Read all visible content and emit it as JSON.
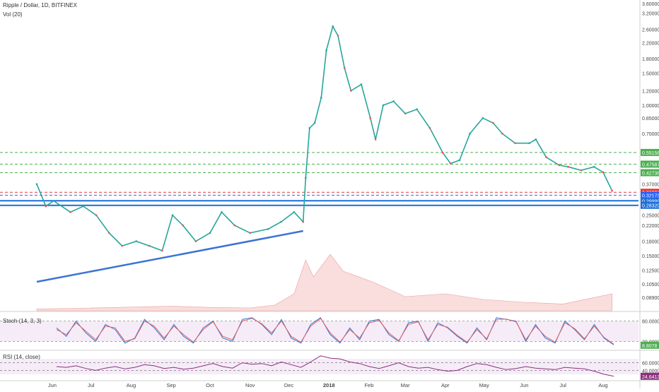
{
  "chart_data": [
    {
      "type": "candlestick",
      "title": "Ripple / Dollar, 1D, BITFINEX",
      "indicator_label": "Vol (20)",
      "y_scale": "log",
      "ylim": [
        0.075,
        3.7
      ],
      "y_ticks": [
        "3.60000",
        "3.20000",
        "2.60000",
        "2.20000",
        "1.80000",
        "1.50000",
        "1.20000",
        "1.00000",
        "0.85000",
        "0.70000",
        "0.37000",
        "0.30000",
        "0.25000",
        "0.22000",
        "0.18000",
        "0.15000",
        "0.12500",
        "0.10500",
        "0.08900"
      ],
      "x_ticks": [
        "Jun",
        "Jul",
        "Aug",
        "Sep",
        "Oct",
        "Nov",
        "Dec",
        "2018",
        "Feb",
        "Mar",
        "Apr",
        "May",
        "Jun",
        "Jul",
        "Aug"
      ],
      "horizontal_levels": [
        {
          "label": "0.55156",
          "value": 0.55156,
          "style": "dashed",
          "color": "#4caf50"
        },
        {
          "label": "0.47587",
          "value": 0.47587,
          "style": "dashed",
          "color": "#4caf50"
        },
        {
          "label": "0.42738",
          "value": 0.42738,
          "style": "dashed",
          "color": "#4caf50"
        },
        {
          "label": "0.33397",
          "value": 0.33397,
          "style": "dashed",
          "color": "#e53935"
        },
        {
          "label": "0.32173",
          "value": 0.32173,
          "style": "dashed",
          "color": "#2962ff"
        },
        {
          "label": "0.29999",
          "value": 0.29999,
          "style": "solid",
          "color": "#1e6fd9"
        },
        {
          "label": "0.28320",
          "value": 0.2832,
          "style": "solid",
          "color": "#1e6fd9"
        }
      ],
      "trendline": {
        "from": {
          "x": "2017-05-20",
          "y": 0.108
        },
        "to": {
          "x": "2017-12-12",
          "y": 0.205
        },
        "color": "#3b73d6"
      },
      "price_path": [
        {
          "x": "2017-05-20",
          "y": 0.37
        },
        {
          "x": "2017-05-27",
          "y": 0.28
        },
        {
          "x": "2017-06-02",
          "y": 0.3
        },
        {
          "x": "2017-06-15",
          "y": 0.26
        },
        {
          "x": "2017-06-25",
          "y": 0.28
        },
        {
          "x": "2017-07-05",
          "y": 0.25
        },
        {
          "x": "2017-07-15",
          "y": 0.2
        },
        {
          "x": "2017-07-25",
          "y": 0.17
        },
        {
          "x": "2017-08-05",
          "y": 0.18
        },
        {
          "x": "2017-08-15",
          "y": 0.17
        },
        {
          "x": "2017-08-25",
          "y": 0.16
        },
        {
          "x": "2017-09-02",
          "y": 0.25
        },
        {
          "x": "2017-09-10",
          "y": 0.22
        },
        {
          "x": "2017-09-20",
          "y": 0.18
        },
        {
          "x": "2017-10-01",
          "y": 0.2
        },
        {
          "x": "2017-10-10",
          "y": 0.26
        },
        {
          "x": "2017-10-20",
          "y": 0.22
        },
        {
          "x": "2017-11-01",
          "y": 0.2
        },
        {
          "x": "2017-11-15",
          "y": 0.21
        },
        {
          "x": "2017-11-25",
          "y": 0.23
        },
        {
          "x": "2017-12-05",
          "y": 0.26
        },
        {
          "x": "2017-12-12",
          "y": 0.23
        },
        {
          "x": "2017-12-14",
          "y": 0.4
        },
        {
          "x": "2017-12-17",
          "y": 0.75
        },
        {
          "x": "2017-12-21",
          "y": 0.8
        },
        {
          "x": "2017-12-26",
          "y": 1.1
        },
        {
          "x": "2017-12-30",
          "y": 2.0
        },
        {
          "x": "2018-01-04",
          "y": 2.7
        },
        {
          "x": "2018-01-08",
          "y": 2.4
        },
        {
          "x": "2018-01-13",
          "y": 1.6
        },
        {
          "x": "2018-01-18",
          "y": 1.2
        },
        {
          "x": "2018-01-26",
          "y": 1.3
        },
        {
          "x": "2018-02-02",
          "y": 0.85
        },
        {
          "x": "2018-02-06",
          "y": 0.65
        },
        {
          "x": "2018-02-12",
          "y": 1.0
        },
        {
          "x": "2018-02-20",
          "y": 1.05
        },
        {
          "x": "2018-03-01",
          "y": 0.9
        },
        {
          "x": "2018-03-10",
          "y": 0.95
        },
        {
          "x": "2018-03-20",
          "y": 0.75
        },
        {
          "x": "2018-03-30",
          "y": 0.55
        },
        {
          "x": "2018-04-05",
          "y": 0.48
        },
        {
          "x": "2018-04-12",
          "y": 0.5
        },
        {
          "x": "2018-04-20",
          "y": 0.7
        },
        {
          "x": "2018-04-30",
          "y": 0.85
        },
        {
          "x": "2018-05-08",
          "y": 0.8
        },
        {
          "x": "2018-05-15",
          "y": 0.7
        },
        {
          "x": "2018-05-25",
          "y": 0.62
        },
        {
          "x": "2018-06-05",
          "y": 0.62
        },
        {
          "x": "2018-06-10",
          "y": 0.65
        },
        {
          "x": "2018-06-18",
          "y": 0.52
        },
        {
          "x": "2018-06-28",
          "y": 0.47
        },
        {
          "x": "2018-07-05",
          "y": 0.46
        },
        {
          "x": "2018-07-15",
          "y": 0.44
        },
        {
          "x": "2018-07-25",
          "y": 0.46
        },
        {
          "x": "2018-08-01",
          "y": 0.43
        },
        {
          "x": "2018-08-08",
          "y": 0.34
        }
      ],
      "volume_path": [
        {
          "x": "2017-05-20",
          "y": 0.03
        },
        {
          "x": "2017-09-01",
          "y": 0.08
        },
        {
          "x": "2017-10-01",
          "y": 0.06
        },
        {
          "x": "2017-11-01",
          "y": 0.05
        },
        {
          "x": "2017-11-20",
          "y": 0.1
        },
        {
          "x": "2017-12-05",
          "y": 0.3
        },
        {
          "x": "2017-12-14",
          "y": 0.9
        },
        {
          "x": "2017-12-20",
          "y": 0.6
        },
        {
          "x": "2018-01-02",
          "y": 1.0
        },
        {
          "x": "2018-01-12",
          "y": 0.7
        },
        {
          "x": "2018-02-05",
          "y": 0.5
        },
        {
          "x": "2018-03-01",
          "y": 0.25
        },
        {
          "x": "2018-04-01",
          "y": 0.3
        },
        {
          "x": "2018-05-01",
          "y": 0.2
        },
        {
          "x": "2018-06-01",
          "y": 0.15
        },
        {
          "x": "2018-07-01",
          "y": 0.12
        },
        {
          "x": "2018-08-08",
          "y": 0.3
        }
      ]
    },
    {
      "type": "line",
      "title": "Stoch (14, 3, 3)",
      "ylim": [
        0,
        100
      ],
      "y_ticks": [
        "80.0000",
        "20.0000"
      ],
      "current_value_label": "8.8078",
      "series": [
        {
          "color": "#2e7cd6",
          "values": [
            60,
            35,
            80,
            45,
            20,
            70,
            55,
            15,
            30,
            85,
            60,
            25,
            70,
            35,
            15,
            60,
            80,
            30,
            20,
            85,
            90,
            70,
            40,
            85,
            30,
            15,
            70,
            90,
            40,
            15,
            60,
            25,
            80,
            85,
            40,
            20,
            75,
            80,
            20,
            75,
            60,
            35,
            15,
            60,
            25,
            90,
            85,
            80,
            20,
            70,
            30,
            15,
            80,
            55,
            25,
            70,
            30,
            10
          ]
        },
        {
          "color": "#e65f5f",
          "values": [
            55,
            40,
            75,
            50,
            25,
            65,
            60,
            20,
            28,
            80,
            65,
            30,
            65,
            40,
            18,
            55,
            78,
            35,
            25,
            80,
            88,
            72,
            45,
            80,
            35,
            18,
            65,
            88,
            45,
            18,
            55,
            30,
            75,
            82,
            45,
            22,
            70,
            78,
            25,
            70,
            62,
            38,
            18,
            55,
            28,
            85,
            86,
            78,
            25,
            65,
            35,
            18,
            75,
            58,
            28,
            65,
            32,
            12
          ]
        }
      ]
    },
    {
      "type": "line",
      "title": "RSI (14, close)",
      "ylim": [
        0,
        100
      ],
      "y_ticks": [
        "60.0000",
        "40.0000"
      ],
      "current_value_label": "24.6413",
      "series": [
        {
          "color": "#8e2e7e",
          "values": [
            50,
            48,
            52,
            45,
            40,
            46,
            50,
            44,
            48,
            55,
            52,
            45,
            48,
            43,
            46,
            52,
            58,
            50,
            46,
            60,
            56,
            58,
            52,
            62,
            55,
            48,
            62,
            78,
            72,
            70,
            62,
            58,
            50,
            45,
            52,
            60,
            50,
            46,
            48,
            42,
            38,
            40,
            50,
            58,
            55,
            48,
            42,
            45,
            50,
            46,
            44,
            42,
            48,
            46,
            44,
            38,
            30,
            25
          ]
        }
      ]
    }
  ]
}
